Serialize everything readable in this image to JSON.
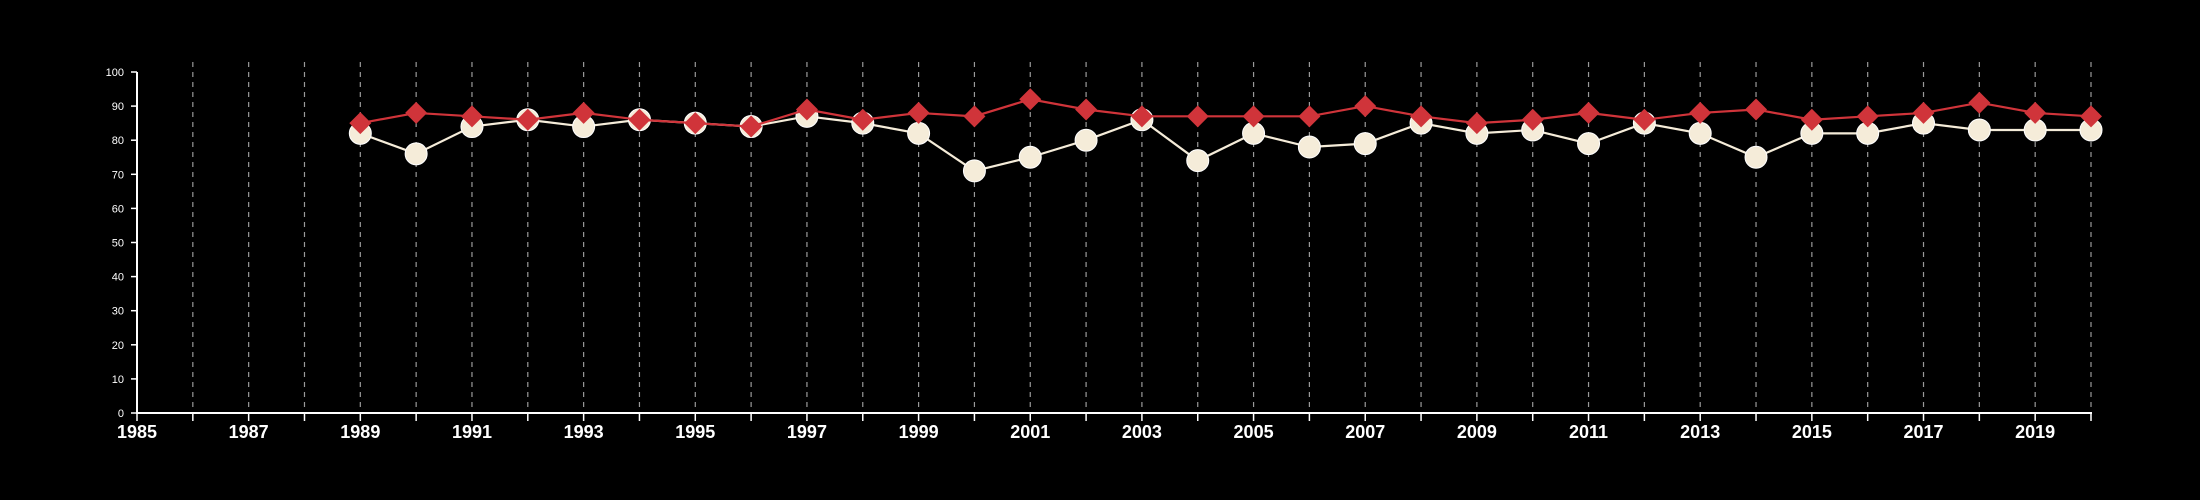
{
  "chart_data": {
    "type": "line",
    "x": [
      1989,
      1990,
      1991,
      1992,
      1993,
      1994,
      1995,
      1996,
      1997,
      1998,
      1999,
      2000,
      2001,
      2002,
      2003,
      2004,
      2005,
      2006,
      2007,
      2008,
      2009,
      2010,
      2011,
      2012,
      2013,
      2014,
      2015,
      2016,
      2017,
      2018,
      2019,
      2020
    ],
    "series": [
      {
        "marker": "circle",
        "color": "#f5ecd9",
        "values": [
          82,
          76,
          84,
          86,
          84,
          86,
          85,
          84,
          87,
          85,
          82,
          71,
          75,
          80,
          86,
          74,
          82,
          78,
          79,
          85,
          82,
          83,
          79,
          85,
          82,
          75,
          82,
          82,
          85,
          83,
          83,
          83
        ]
      },
      {
        "marker": "diamond",
        "color": "#d0343a",
        "values": [
          85,
          88,
          87,
          86,
          88,
          86,
          85,
          84,
          89,
          86,
          88,
          87,
          92,
          89,
          87,
          87,
          87,
          87,
          90,
          87,
          85,
          86,
          88,
          86,
          88,
          89,
          86,
          87,
          88,
          91,
          88,
          87
        ]
      }
    ],
    "xlim": [
      1985,
      2020
    ],
    "ylim": [
      0,
      100
    ],
    "x_tick_labels": [
      "1985",
      "1987",
      "1989",
      "1991",
      "1993",
      "1995",
      "1997",
      "1999",
      "2001",
      "2003",
      "2005",
      "2007",
      "2009",
      "2011",
      "2013",
      "2015",
      "2017",
      "2019"
    ],
    "y_tick_labels": [
      "0",
      "10",
      "20",
      "30",
      "40",
      "50",
      "60",
      "70",
      "80",
      "90",
      "100"
    ],
    "vertical_grid": "dashed yearly",
    "background": "#000000",
    "axis_color": "#ffffff"
  }
}
